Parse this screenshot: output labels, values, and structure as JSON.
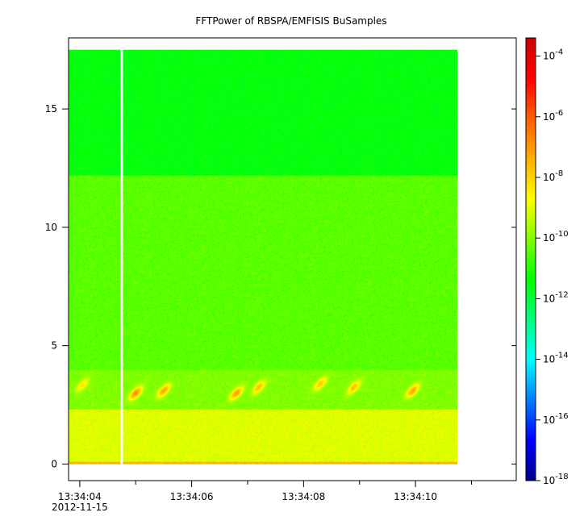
{
  "chart_data": {
    "type": "heatmap",
    "title": "FFTPower of RBSPA/EMFISIS  BuSamples",
    "xlabel": "",
    "ylabel": "",
    "x_ticks": [
      {
        "value": 4,
        "label": "13:34:04",
        "sublabel": "2012-11-15"
      },
      {
        "value": 6,
        "label": "13:34:06"
      },
      {
        "value": 8,
        "label": "13:34:08"
      },
      {
        "value": 10,
        "label": "13:34:10"
      }
    ],
    "x_minor_ticks": [
      5,
      7,
      9,
      11
    ],
    "xlim": [
      3.8,
      11.8
    ],
    "ylim": [
      -0.7,
      18.0
    ],
    "y_ticks": [
      0,
      5,
      10,
      15
    ],
    "data_extent": {
      "x": [
        3.8,
        10.75
      ],
      "y": [
        0,
        17.5
      ]
    },
    "gap": {
      "x": 4.75
    },
    "background_bands": [
      {
        "y": [
          0,
          0.1
        ],
        "level": -7.6
      },
      {
        "y": [
          0.1,
          2.3
        ],
        "level": -9.2
      },
      {
        "y": [
          2.3,
          4.0
        ],
        "level": -10.2
      },
      {
        "y": [
          4.0,
          12.2
        ],
        "level": -10.6
      },
      {
        "y": [
          12.2,
          17.5
        ],
        "level": -11.6
      }
    ],
    "emissions": [
      {
        "x": 4.05,
        "y": 3.35,
        "level": -8.2
      },
      {
        "x": 5.0,
        "y": 3.0,
        "level": -6.8
      },
      {
        "x": 5.5,
        "y": 3.1,
        "level": -7.2
      },
      {
        "x": 6.8,
        "y": 3.0,
        "level": -7.0
      },
      {
        "x": 7.2,
        "y": 3.25,
        "level": -7.6
      },
      {
        "x": 8.3,
        "y": 3.4,
        "level": -7.8
      },
      {
        "x": 8.9,
        "y": 3.25,
        "level": -7.6
      },
      {
        "x": 9.95,
        "y": 3.1,
        "level": -7.2
      }
    ],
    "colorbar": {
      "scale": "log",
      "range": [
        -18,
        -3.4
      ],
      "ticks": [
        {
          "exp": -4,
          "label": "10",
          "sup": "-4"
        },
        {
          "exp": -6,
          "label": "10",
          "sup": "-6"
        },
        {
          "exp": -8,
          "label": "10",
          "sup": "-8"
        },
        {
          "exp": -10,
          "label": "10",
          "sup": "-10"
        },
        {
          "exp": -12,
          "label": "10",
          "sup": "-12"
        },
        {
          "exp": -14,
          "label": "10",
          "sup": "-14"
        },
        {
          "exp": -16,
          "label": "10",
          "sup": "-16"
        },
        {
          "exp": -18,
          "label": "10",
          "sup": "-18"
        }
      ],
      "colormap": [
        "#00008c",
        "#0000ff",
        "#0080ff",
        "#00ffff",
        "#00ff80",
        "#00ff00",
        "#80ff00",
        "#ffff00",
        "#ffb000",
        "#ff6000",
        "#ff0000",
        "#d00000"
      ]
    }
  }
}
